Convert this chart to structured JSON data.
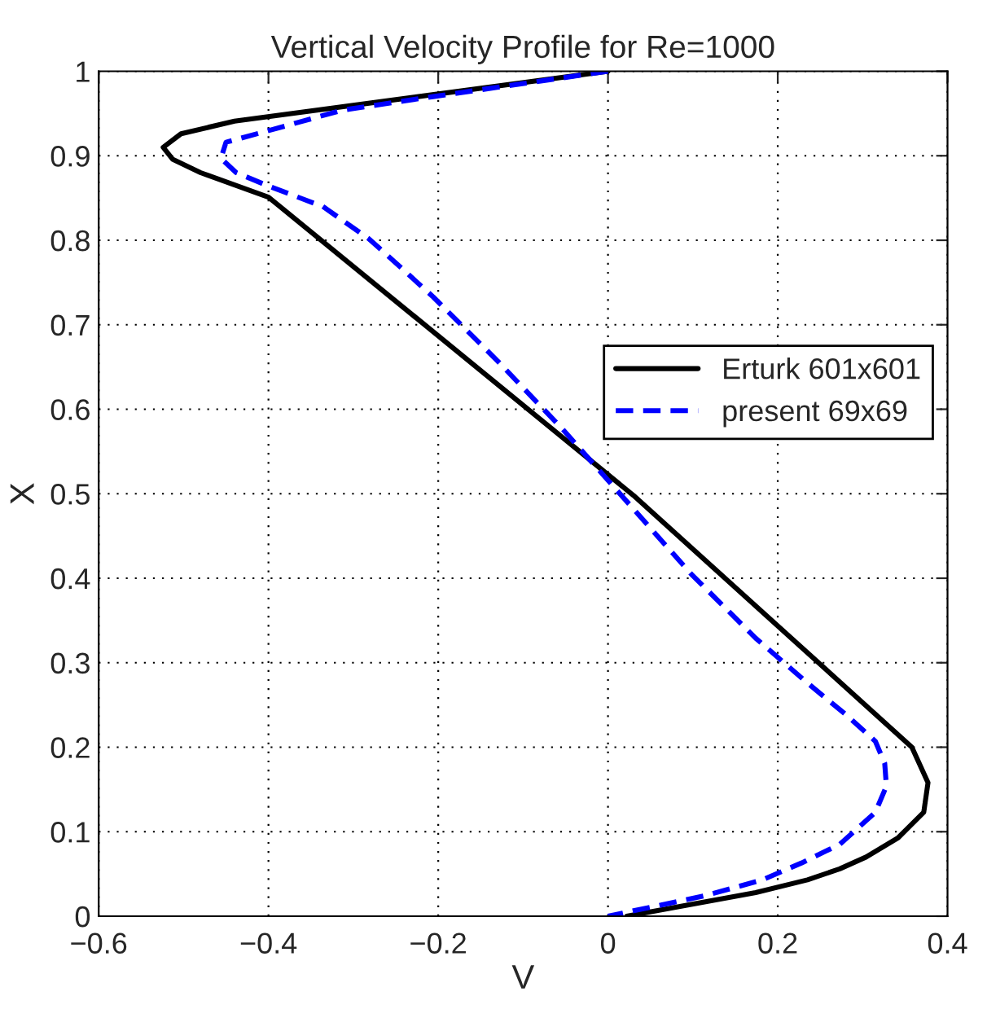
{
  "chart_data": {
    "type": "line",
    "title": "Vertical Velocity Profile for Re=1000",
    "xlabel": "V",
    "ylabel": "X",
    "series": [
      {
        "name": "Erturk 601x601",
        "color": "#000000",
        "line_style": "solid",
        "x": [
          0.0,
          -0.44,
          -0.503,
          -0.524,
          -0.513,
          -0.48,
          -0.4,
          0.03,
          0.358,
          0.377,
          0.372,
          0.342,
          0.304,
          0.273,
          0.235,
          0.174,
          0.022
        ],
        "values": [
          1.0,
          0.941,
          0.926,
          0.91,
          0.896,
          0.88,
          0.851,
          0.498,
          0.2,
          0.158,
          0.123,
          0.093,
          0.07,
          0.056,
          0.043,
          0.028,
          0.0
        ]
      },
      {
        "name": "present 69x69",
        "color": "#0000ff",
        "line_style": "dashed",
        "x": [
          0.0,
          -0.206,
          -0.313,
          -0.381,
          -0.45,
          -0.456,
          -0.438,
          -0.397,
          -0.336,
          -0.282,
          -0.252,
          -0.206,
          -0.13,
          -0.054,
          0.007,
          0.098,
          0.174,
          0.235,
          0.281,
          0.315,
          0.326,
          0.328,
          0.315,
          0.273,
          0.228,
          0.182,
          0.113,
          0.0
        ],
        "values": [
          1.0,
          0.97,
          0.954,
          0.935,
          0.916,
          0.897,
          0.88,
          0.863,
          0.84,
          0.802,
          0.775,
          0.733,
          0.657,
          0.577,
          0.508,
          0.405,
          0.329,
          0.276,
          0.238,
          0.207,
          0.181,
          0.154,
          0.123,
          0.085,
          0.063,
          0.043,
          0.024,
          0.0
        ]
      }
    ],
    "xlim": [
      -0.6,
      0.4
    ],
    "ylim": [
      0,
      1
    ],
    "xticks": [
      {
        "value": -0.6,
        "label": "−0.6"
      },
      {
        "value": -0.4,
        "label": "−0.4"
      },
      {
        "value": -0.2,
        "label": "−0.2"
      },
      0,
      0.2,
      0.4
    ],
    "yticks": [
      0,
      0.1,
      0.2,
      0.3,
      0.4,
      0.5,
      0.6,
      0.7,
      0.8,
      0.9,
      1
    ],
    "grid": true,
    "legend": "right",
    "marker": "none"
  }
}
